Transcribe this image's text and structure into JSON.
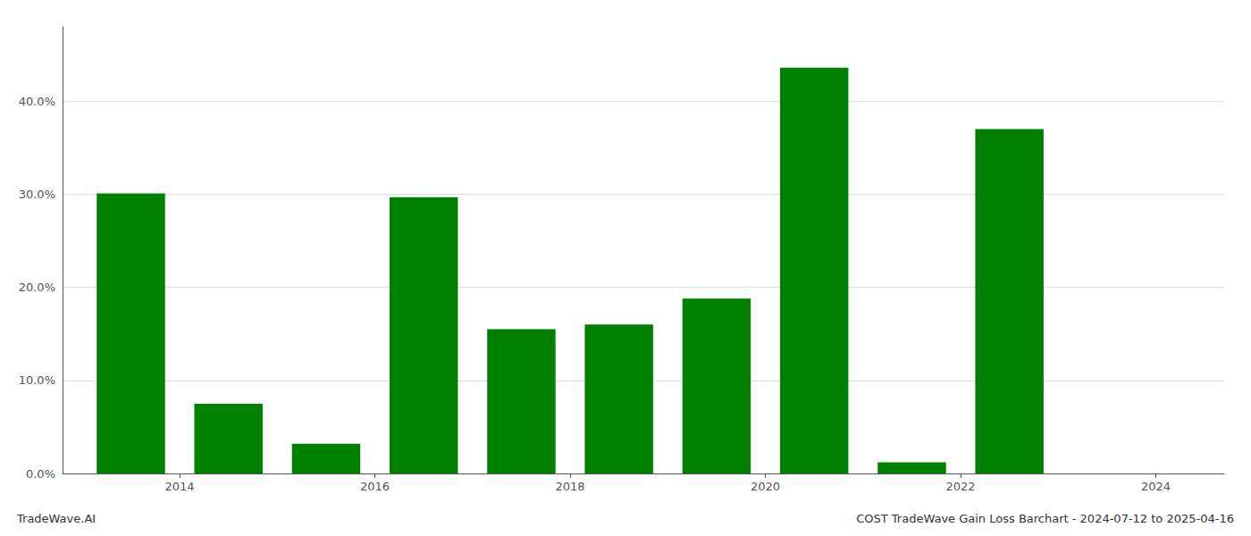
{
  "chart_data": {
    "type": "bar",
    "title": "COST TradeWave Gain Loss Barchart - 2024-07-12 to 2025-04-16",
    "annotations": [
      "TradeWave.AI"
    ],
    "x": [
      2013,
      2014,
      2015,
      2016,
      2017,
      2018,
      2019,
      2020,
      2021,
      2022,
      2023
    ],
    "values": [
      0.301,
      0.075,
      0.032,
      0.297,
      0.155,
      0.16,
      0.188,
      0.436,
      0.012,
      0.37,
      0.0
    ],
    "color": "#008000",
    "xlim": [
      2012.3,
      2024.2
    ],
    "xticks": [
      {
        "value": 2013.5,
        "label": "2014"
      },
      {
        "value": 2015.5,
        "label": "2016"
      },
      {
        "value": 2017.5,
        "label": "2018"
      },
      {
        "value": 2019.5,
        "label": "2020"
      },
      {
        "value": 2021.5,
        "label": "2022"
      },
      {
        "value": 2023.5,
        "label": "2024"
      }
    ],
    "ylim": [
      0,
      0.48
    ],
    "yticks": [
      {
        "value": 0.0,
        "label": "0.0%"
      },
      {
        "value": 0.1,
        "label": "10.0%"
      },
      {
        "value": 0.2,
        "label": "20.0%"
      },
      {
        "value": 0.3,
        "label": "30.0%"
      },
      {
        "value": 0.4,
        "label": "40.0%"
      }
    ],
    "grid": true
  }
}
